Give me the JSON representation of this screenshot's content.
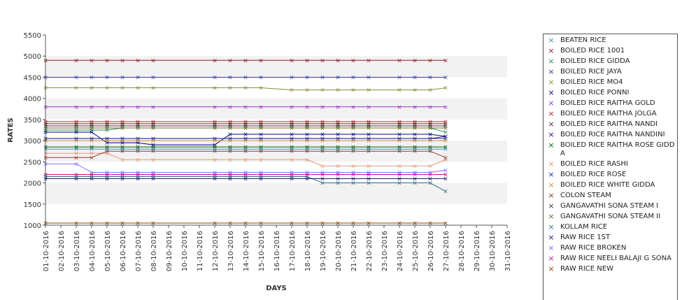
{
  "chart_data": {
    "type": "line",
    "xlabel": "DAYS",
    "ylabel": "RATES",
    "ylim": [
      1000,
      5500
    ],
    "yticks": [
      1000,
      1500,
      2000,
      2500,
      3000,
      3500,
      4000,
      4500,
      5000,
      5500
    ],
    "x": [
      "01-10-2016",
      "02-10-2016",
      "03-10-2016",
      "04-10-2016",
      "05-10-2016",
      "06-10-2016",
      "07-10-2016",
      "08-10-2016",
      "09-10-2016",
      "10-10-2016",
      "11-10-2016",
      "12-10-2016",
      "13-10-2016",
      "14-10-2016",
      "15-10-2016",
      "16-10-2016",
      "17-10-2016",
      "18-10-2016",
      "19-10-2016",
      "20-10-2016",
      "21-10-2016",
      "22-10-2016",
      "23-10-2016",
      "24-10-2016",
      "25-10-2016",
      "26-10-2016",
      "27-10-2016",
      "28-10-2016",
      "29-10-2016",
      "30-10-2016",
      "31-10-2016"
    ],
    "observed_days": [
      1,
      3,
      4,
      5,
      6,
      7,
      8,
      12,
      13,
      14,
      15,
      17,
      18,
      19,
      20,
      21,
      22,
      24,
      25,
      26,
      27
    ],
    "legend_position": "right",
    "grid": "alternating horizontal bands",
    "series": [
      {
        "name": "BEATEN RICE",
        "color": "#3c8dbc",
        "start": 2800,
        "end": 2800,
        "changes": {}
      },
      {
        "name": "BOILED RICE 1001",
        "color": "#8b1a1a",
        "start": 4900,
        "end": 4900,
        "changes": {}
      },
      {
        "name": "BOILED RICE GIDDA",
        "color": "#2e8b57",
        "start": 3250,
        "end": 3200,
        "changes": {
          "6": 3300
        }
      },
      {
        "name": "BOILED RICE JAYA",
        "color": "#3a3a9a",
        "start": 4500,
        "end": 4500,
        "changes": {}
      },
      {
        "name": "BOILED RICE MO4",
        "color": "#8b8b3a",
        "start": 4250,
        "end": 4250,
        "changes": {
          "17": 4200
        }
      },
      {
        "name": "BOILED RICE PONNI",
        "color": "#00008b",
        "start": 3200,
        "end": 3100,
        "changes": {
          "5": 2950,
          "8": 2900,
          "13": 3150
        }
      },
      {
        "name": "BOILED RICE RAITHA GOLD",
        "color": "#9932cc",
        "start": 3800,
        "end": 3800,
        "changes": {}
      },
      {
        "name": "BOILED RICE RAITHA JOLGA",
        "color": "#b22222",
        "start": 3450,
        "end": 3450,
        "changes": {}
      },
      {
        "name": "BOILED RICE RAITHA NANDI",
        "color": "#5a2a2a",
        "start": 3400,
        "end": 3400,
        "changes": {}
      },
      {
        "name": "BOILED RICE RAITHA NANDINI",
        "color": "#4b0082",
        "start": 3050,
        "end": 3100,
        "changes": {}
      },
      {
        "name": "BOILED RICE RAITHA ROSE GIDDA",
        "color": "#006400",
        "start": 2850,
        "end": 2850,
        "changes": {}
      },
      {
        "name": "BOILED RICE RASHI",
        "color": "#e9967a",
        "start": 2700,
        "end": 2550,
        "changes": {
          "6": 2550,
          "19": 2400
        }
      },
      {
        "name": "BOILED RICE ROSE",
        "color": "#1e3f9a",
        "start": 3050,
        "end": 3050,
        "changes": {}
      },
      {
        "name": "BOILED RICE WHITE GIDDA",
        "color": "#cd853f",
        "start": 3000,
        "end": 3000,
        "changes": {}
      },
      {
        "name": "COLON STEAM",
        "color": "#8b3a2a",
        "start": 2600,
        "end": 2600,
        "changes": {
          "5": 2750
        }
      },
      {
        "name": "GANGAVATHI SONA STEAM I",
        "color": "#333333",
        "start": 3350,
        "end": 3350,
        "changes": {}
      },
      {
        "name": "GANGAVATHI SONA STEAM II",
        "color": "#6b6b2a",
        "start": 3300,
        "end": 3300,
        "changes": {}
      },
      {
        "name": "KOLLAM RICE",
        "color": "#2c6e8f",
        "start": 2150,
        "end": 1800,
        "changes": {
          "19": 2000
        }
      },
      {
        "name": "RAW RICE 1ST",
        "color": "#1c1c6e",
        "start": 2100,
        "end": 2100,
        "changes": {}
      },
      {
        "name": "RAW RICE BROKEN",
        "color": "#8470ff",
        "start": 2450,
        "end": 2300,
        "changes": {
          "4": 2250
        }
      },
      {
        "name": "RAW RICE NEELI BALAJI G SONA",
        "color": "#c71585",
        "start": 2200,
        "end": 2200,
        "changes": {}
      },
      {
        "name": "RAW RICE NEW",
        "color": "#8b4500",
        "start": 1050,
        "end": 1050,
        "changes": {}
      }
    ]
  },
  "legend": {
    "items": [
      {
        "label": "BEATEN RICE",
        "color": "#3c8dbc"
      },
      {
        "label": "BOILED RICE 1001",
        "color": "#8b1a1a"
      },
      {
        "label": "BOILED RICE GIDDA",
        "color": "#2e8b57"
      },
      {
        "label": "BOILED RICE JAYA",
        "color": "#3a3a9a"
      },
      {
        "label": "BOILED RICE MO4",
        "color": "#8b8b3a"
      },
      {
        "label": "BOILED RICE PONNI",
        "color": "#00008b"
      },
      {
        "label": "BOILED RICE RAITHA GOLD",
        "color": "#9932cc"
      },
      {
        "label": "BOILED RICE RAITHA JOLGA",
        "color": "#b22222"
      },
      {
        "label": "BOILED RICE RAITHA NANDI",
        "color": "#5a2a2a"
      },
      {
        "label": "BOILED RICE RAITHA NANDINI",
        "color": "#4b0082"
      },
      {
        "label": "BOILED RICE RAITHA ROSE GIDDA",
        "color": "#006400"
      },
      {
        "label": "BOILED RICE RASHI",
        "color": "#e9967a"
      },
      {
        "label": "BOILED RICE ROSE",
        "color": "#1e3f9a"
      },
      {
        "label": "BOILED RICE WHITE GIDDA",
        "color": "#cd853f"
      },
      {
        "label": "COLON STEAM",
        "color": "#8b3a2a"
      },
      {
        "label": "GANGAVATHI SONA STEAM I",
        "color": "#333333"
      },
      {
        "label": "GANGAVATHI SONA STEAM II",
        "color": "#6b6b2a"
      },
      {
        "label": "KOLLAM RICE",
        "color": "#2c6e8f"
      },
      {
        "label": "RAW RICE 1ST",
        "color": "#1c1c6e"
      },
      {
        "label": "RAW RICE BROKEN",
        "color": "#8470ff"
      },
      {
        "label": "RAW RICE NEELI BALAJI G SONA",
        "color": "#c71585"
      },
      {
        "label": "RAW RICE NEW",
        "color": "#8b4500"
      }
    ]
  }
}
